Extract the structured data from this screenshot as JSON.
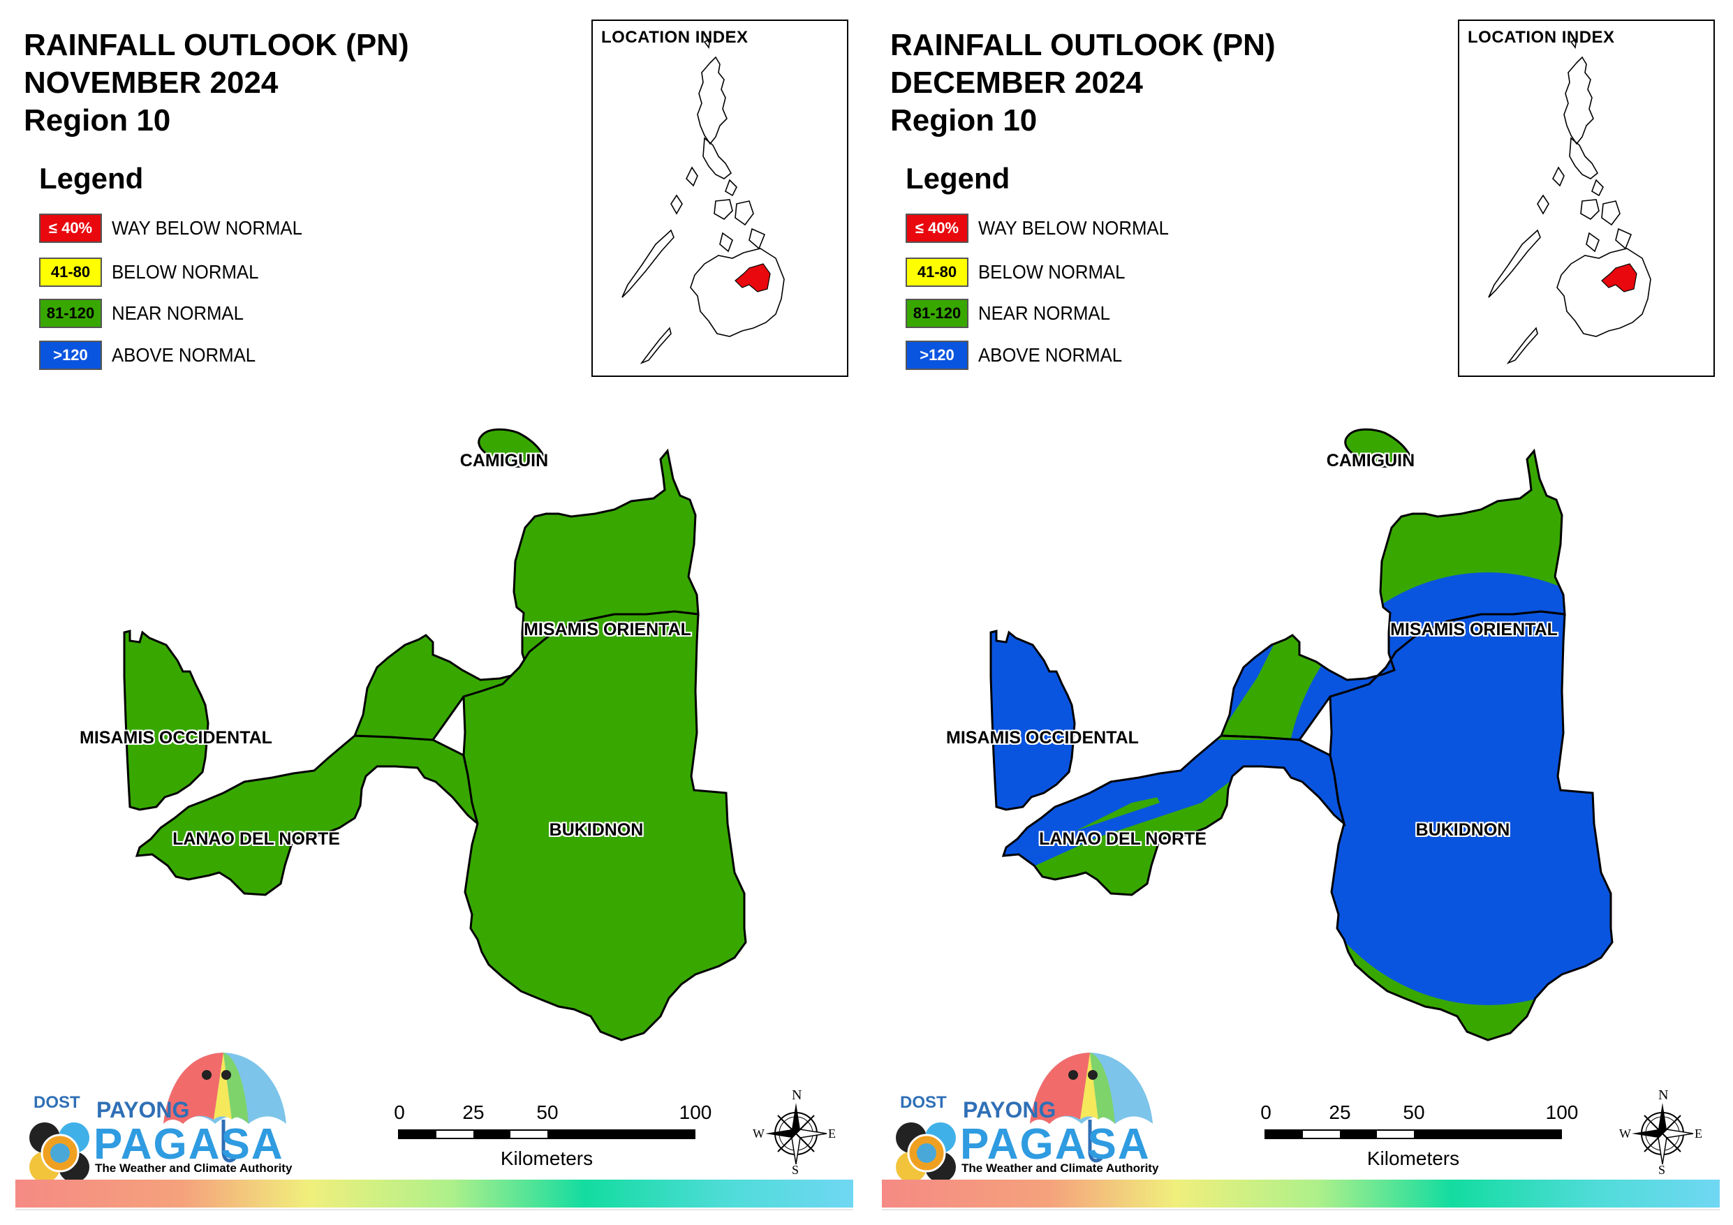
{
  "colors": {
    "way_below": "#e8080e",
    "below": "#ffff00",
    "near": "#38a800",
    "above": "#0a55e0"
  },
  "panels": [
    {
      "title_line1": "RAINFALL OUTLOOK (PN)",
      "title_line2": "NOVEMBER 2024",
      "title_line3": "Region 10",
      "legend": {
        "title": "Legend",
        "items": [
          {
            "swatch": "≤ 40%",
            "label": "WAY BELOW NORMAL",
            "color": "#e8080e"
          },
          {
            "swatch": "41-80",
            "label": "BELOW NORMAL",
            "color": "#ffff00"
          },
          {
            "swatch": "81-120",
            "label": "NEAR NORMAL",
            "color": "#38a800"
          },
          {
            "swatch": ">120",
            "label": "ABOVE NORMAL",
            "color": "#0a55e0"
          }
        ]
      },
      "inset_title": "LOCATION INDEX",
      "provinces": {
        "camiguin": {
          "label": "CAMIGUIN",
          "category": "NEAR NORMAL"
        },
        "misamis_oriental": {
          "label": "MISAMIS ORIENTAL",
          "category": "NEAR NORMAL"
        },
        "misamis_occidental": {
          "label": "MISAMIS OCCIDENTAL",
          "category": "NEAR NORMAL"
        },
        "lanao_del_norte": {
          "label": "LANAO DEL NORTE",
          "category": "NEAR NORMAL"
        },
        "bukidnon": {
          "label": "BUKIDNON",
          "category": "NEAR NORMAL"
        }
      },
      "logo": {
        "dost": "DOST",
        "payong": "PAYONG",
        "pagasa": "PAGASA",
        "tagline": "The Weather and Climate Authority"
      },
      "scale": {
        "ticks": [
          "0",
          "25",
          "50",
          "100"
        ],
        "unit": "Kilometers"
      },
      "compass": {
        "n": "N",
        "e": "E",
        "s": "S",
        "w": "W"
      }
    },
    {
      "title_line1": "RAINFALL OUTLOOK (PN)",
      "title_line2": "DECEMBER 2024",
      "title_line3": "Region 10",
      "legend": {
        "title": "Legend",
        "items": [
          {
            "swatch": "≤ 40%",
            "label": "WAY BELOW NORMAL",
            "color": "#e8080e"
          },
          {
            "swatch": "41-80",
            "label": "BELOW NORMAL",
            "color": "#ffff00"
          },
          {
            "swatch": "81-120",
            "label": "NEAR NORMAL",
            "color": "#38a800"
          },
          {
            "swatch": ">120",
            "label": "ABOVE NORMAL",
            "color": "#0a55e0"
          }
        ]
      },
      "inset_title": "LOCATION INDEX",
      "provinces": {
        "camiguin": {
          "label": "CAMIGUIN",
          "category": "NEAR NORMAL"
        },
        "misamis_oriental": {
          "label": "MISAMIS ORIENTAL",
          "category": "ABOVE NORMAL / NEAR NORMAL"
        },
        "misamis_occidental": {
          "label": "MISAMIS OCCIDENTAL",
          "category": "ABOVE NORMAL"
        },
        "lanao_del_norte": {
          "label": "LANAO DEL NORTE",
          "category": "ABOVE NORMAL / NEAR NORMAL"
        },
        "bukidnon": {
          "label": "BUKIDNON",
          "category": "ABOVE NORMAL / NEAR NORMAL"
        }
      },
      "logo": {
        "dost": "DOST",
        "payong": "PAYONG",
        "pagasa": "PAGASA",
        "tagline": "The Weather and Climate Authority"
      },
      "scale": {
        "ticks": [
          "0",
          "25",
          "50",
          "100"
        ],
        "unit": "Kilometers"
      },
      "compass": {
        "n": "N",
        "e": "E",
        "s": "S",
        "w": "W"
      }
    }
  ]
}
